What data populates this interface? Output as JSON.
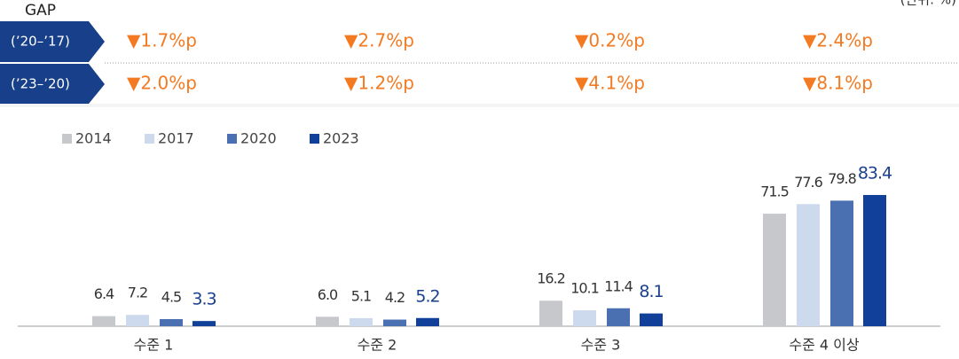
{
  "unit": "(단위: %)",
  "gap": {
    "title": "GAP",
    "rows": [
      {
        "label": "(’20–’17)",
        "values": [
          "▼1.7%p",
          "▼2.7%p",
          "▼0.2%p",
          "▼2.4%p"
        ]
      },
      {
        "label": "(’23–’20)",
        "values": [
          "▼2.0%p",
          "▼1.2%p",
          "▼4.1%p",
          "▼8.1%p"
        ]
      }
    ]
  },
  "chart_data": {
    "type": "bar",
    "categories": [
      "수준 1",
      "수준 2",
      "수준 3",
      "수준 4 이상"
    ],
    "series": [
      {
        "name": "2014",
        "color": "#c6c8cc",
        "values": [
          6.4,
          6.0,
          16.2,
          71.5
        ],
        "value_labels": [
          "6.4",
          "6.0",
          "16.2",
          "71.5"
        ]
      },
      {
        "name": "2017",
        "color": "#cdd9ec",
        "values": [
          7.2,
          5.1,
          10.1,
          77.6
        ],
        "value_labels": [
          "7.2",
          "5.1",
          "10.1",
          "77.6"
        ]
      },
      {
        "name": "2020",
        "color": "#4a70b2",
        "values": [
          4.5,
          4.2,
          11.4,
          79.8
        ],
        "value_labels": [
          "4.5",
          "4.2",
          "11.4",
          "79.8"
        ]
      },
      {
        "name": "2023",
        "color": "#10409a",
        "values": [
          3.3,
          5.2,
          8.1,
          83.4
        ],
        "value_labels": [
          "3.3",
          "5.2",
          "8.1",
          "83.4"
        ]
      }
    ]
  }
}
